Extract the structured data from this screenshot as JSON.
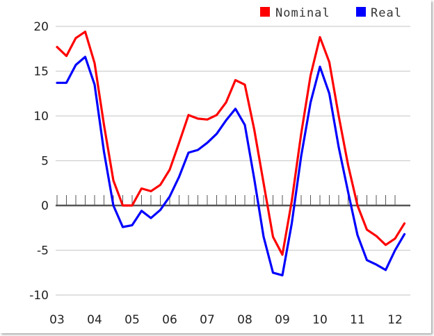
{
  "chart_data": {
    "type": "line",
    "title": "",
    "xlabel": "",
    "ylabel": "",
    "ylim": [
      -10,
      20
    ],
    "y_ticks": [
      "20",
      "15",
      "10",
      "5",
      "0",
      "-5",
      "-10"
    ],
    "x_tick_labels": [
      "03",
      "04",
      "05",
      "06",
      "07",
      "08",
      "09",
      "10",
      "11",
      "12"
    ],
    "x_range": [
      2003.0,
      2012.0
    ],
    "grid": "horizontal",
    "legend_position": "top-right",
    "series": [
      {
        "name": "Nominal",
        "color": "#ff0000",
        "points": [
          [
            2003.0,
            17.7
          ],
          [
            2003.25,
            16.7
          ],
          [
            2003.5,
            18.7
          ],
          [
            2003.75,
            19.4
          ],
          [
            2004.0,
            15.9
          ],
          [
            2004.25,
            9.0
          ],
          [
            2004.5,
            2.8
          ],
          [
            2004.75,
            0.0
          ],
          [
            2005.0,
            0.0
          ],
          [
            2005.25,
            1.9
          ],
          [
            2005.5,
            1.6
          ],
          [
            2005.75,
            2.3
          ],
          [
            2006.0,
            4.0
          ],
          [
            2006.25,
            7.0
          ],
          [
            2006.5,
            10.1
          ],
          [
            2006.75,
            9.7
          ],
          [
            2007.0,
            9.6
          ],
          [
            2007.25,
            10.1
          ],
          [
            2007.5,
            11.5
          ],
          [
            2007.75,
            14.0
          ],
          [
            2008.0,
            13.5
          ],
          [
            2008.25,
            8.5
          ],
          [
            2008.5,
            2.5
          ],
          [
            2008.75,
            -3.5
          ],
          [
            2009.0,
            -5.5
          ],
          [
            2009.25,
            0.5
          ],
          [
            2009.5,
            8.0
          ],
          [
            2009.75,
            14.5
          ],
          [
            2010.0,
            18.8
          ],
          [
            2010.25,
            16.0
          ],
          [
            2010.5,
            10.0
          ],
          [
            2010.75,
            4.5
          ],
          [
            2011.0,
            0.0
          ],
          [
            2011.25,
            -2.7
          ],
          [
            2011.5,
            -3.4
          ],
          [
            2011.75,
            -4.4
          ],
          [
            2012.0,
            -3.7
          ],
          [
            2012.25,
            -2.0
          ]
        ]
      },
      {
        "name": "Real",
        "color": "#0000ff",
        "points": [
          [
            2003.0,
            13.7
          ],
          [
            2003.25,
            13.7
          ],
          [
            2003.5,
            15.7
          ],
          [
            2003.75,
            16.6
          ],
          [
            2004.0,
            13.5
          ],
          [
            2004.25,
            6.0
          ],
          [
            2004.5,
            0.0
          ],
          [
            2004.75,
            -2.4
          ],
          [
            2005.0,
            -2.2
          ],
          [
            2005.25,
            -0.6
          ],
          [
            2005.5,
            -1.4
          ],
          [
            2005.75,
            -0.5
          ],
          [
            2006.0,
            1.0
          ],
          [
            2006.25,
            3.2
          ],
          [
            2006.5,
            5.9
          ],
          [
            2006.75,
            6.2
          ],
          [
            2007.0,
            7.0
          ],
          [
            2007.25,
            8.0
          ],
          [
            2007.5,
            9.5
          ],
          [
            2007.75,
            10.8
          ],
          [
            2008.0,
            9.0
          ],
          [
            2008.25,
            3.0
          ],
          [
            2008.5,
            -3.5
          ],
          [
            2008.75,
            -7.5
          ],
          [
            2009.0,
            -7.8
          ],
          [
            2009.25,
            -2.0
          ],
          [
            2009.5,
            5.5
          ],
          [
            2009.75,
            11.5
          ],
          [
            2010.0,
            15.5
          ],
          [
            2010.25,
            12.5
          ],
          [
            2010.5,
            6.5
          ],
          [
            2010.75,
            1.5
          ],
          [
            2011.0,
            -3.3
          ],
          [
            2011.25,
            -6.1
          ],
          [
            2011.5,
            -6.6
          ],
          [
            2011.75,
            -7.2
          ],
          [
            2012.0,
            -5.0
          ],
          [
            2012.25,
            -3.2
          ]
        ]
      }
    ]
  }
}
